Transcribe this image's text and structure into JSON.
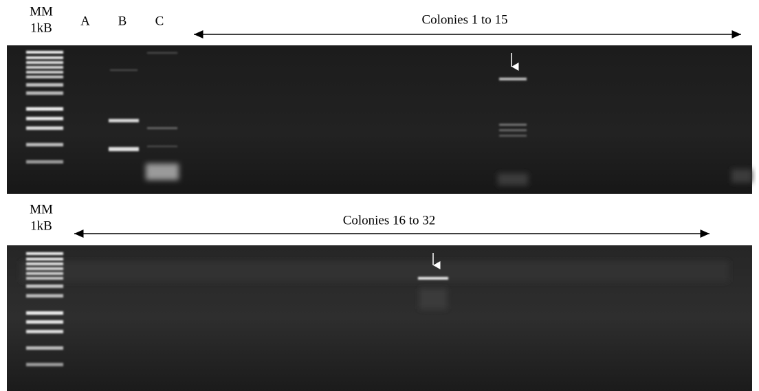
{
  "top_panel": {
    "marker_label": [
      "MM",
      "1kB"
    ],
    "lanes": [
      "A",
      "B",
      "C"
    ],
    "colonies_label": "Colonies 1 to 15"
  },
  "bottom_panel": {
    "marker_label": [
      "MM",
      "1kB"
    ],
    "colonies_label": "Colonies 16 to 32"
  }
}
